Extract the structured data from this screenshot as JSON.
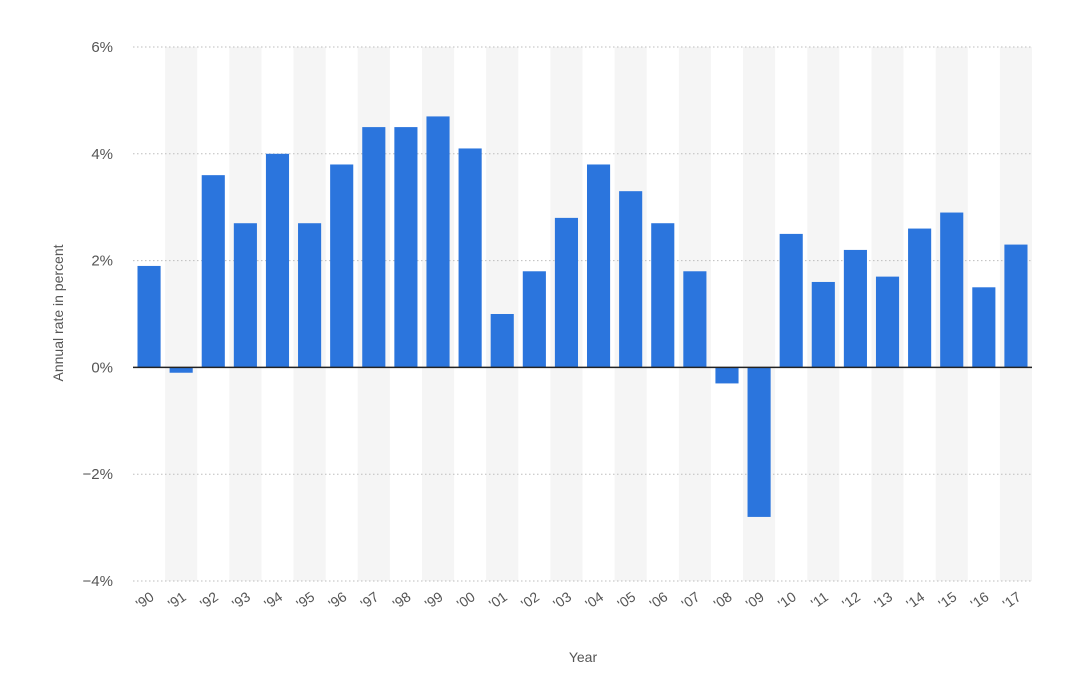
{
  "chart_data": {
    "type": "bar",
    "xlabel": "Year",
    "ylabel": "Annual rate in percent",
    "categories": [
      "'90",
      "'91",
      "'92",
      "'93",
      "'94",
      "'95",
      "'96",
      "'97",
      "'98",
      "'99",
      "'00",
      "'01",
      "'02",
      "'03",
      "'04",
      "'05",
      "'06",
      "'07",
      "'08",
      "'09",
      "'10",
      "'11",
      "'12",
      "'13",
      "'14",
      "'15",
      "'16",
      "'17"
    ],
    "series": [
      {
        "values": [
          1.9,
          -0.1,
          3.6,
          2.7,
          4.0,
          2.7,
          3.8,
          4.5,
          4.5,
          4.7,
          4.1,
          1.0,
          1.8,
          2.8,
          3.8,
          3.3,
          2.7,
          1.8,
          -0.3,
          -2.8,
          2.5,
          1.6,
          2.2,
          1.7,
          2.6,
          2.9,
          1.5,
          2.3
        ]
      }
    ],
    "ylim": [
      -4,
      6
    ],
    "yticks": [
      6,
      4,
      2,
      0,
      -2,
      -4
    ],
    "ytick_labels": [
      "6%",
      "4%",
      "2%",
      "0%",
      "−2%",
      "−4%"
    ],
    "grid": true,
    "bar_color": "#2b75dd",
    "stripe_color": "#f5f5f5"
  }
}
